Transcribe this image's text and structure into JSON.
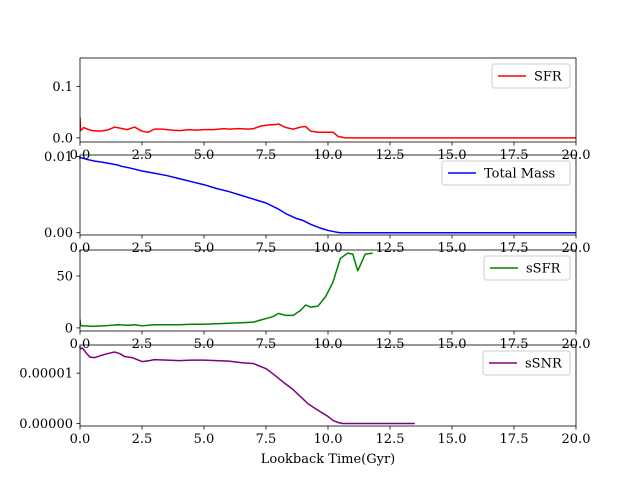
{
  "chart_data": [
    {
      "type": "line",
      "xlim": [
        0,
        20
      ],
      "ylim": [
        -0.008,
        0.155
      ],
      "xticks": [
        "0.0",
        "2.5",
        "5.0",
        "7.5",
        "10.0",
        "12.5",
        "15.0",
        "17.5",
        "20.0"
      ],
      "yticks": [
        {
          "value": 0.0,
          "label": "0.0"
        },
        {
          "value": 0.1,
          "label": "0.1"
        }
      ],
      "legend_position": "upper right",
      "series": [
        {
          "name": "SFR",
          "color": "#ff0000",
          "x": [
            0,
            0.02,
            0.15,
            0.3,
            0.5,
            0.8,
            1.1,
            1.4,
            1.7,
            1.9,
            2.2,
            2.5,
            2.75,
            3.0,
            3.3,
            3.7,
            4.0,
            4.4,
            4.7,
            5.0,
            5.4,
            5.8,
            6.0,
            6.4,
            6.8,
            7.0,
            7.3,
            7.6,
            7.9,
            8.0,
            8.3,
            8.6,
            8.9,
            9.1,
            9.3,
            9.6,
            9.9,
            10.2,
            10.4,
            10.7,
            11,
            12,
            14,
            16,
            18,
            20
          ],
          "y": [
            0.04,
            0.014,
            0.02,
            0.017,
            0.014,
            0.013,
            0.015,
            0.021,
            0.018,
            0.016,
            0.021,
            0.013,
            0.011,
            0.017,
            0.017,
            0.015,
            0.014,
            0.016,
            0.015,
            0.016,
            0.016,
            0.018,
            0.017,
            0.018,
            0.017,
            0.018,
            0.023,
            0.025,
            0.026,
            0.027,
            0.02,
            0.017,
            0.021,
            0.022,
            0.013,
            0.011,
            0.011,
            0.011,
            0.003,
            0.0,
            0.0,
            0.0,
            0.0,
            0.0,
            0.0,
            0.0
          ]
        }
      ]
    },
    {
      "type": "line",
      "xlim": [
        0,
        20
      ],
      "ylim": [
        -0.0003,
        0.0102
      ],
      "xticks": [
        "0.0",
        "2.5",
        "5.0",
        "7.5",
        "10.0",
        "12.5",
        "15.0",
        "17.5",
        "20.0"
      ],
      "yticks": [
        {
          "value": 0.0,
          "label": "0.00"
        },
        {
          "value": 0.01,
          "label": "0.01"
        }
      ],
      "legend_position": "upper right",
      "series": [
        {
          "name": "Total Mass",
          "color": "#0000ff",
          "x": [
            0,
            0.3,
            0.6,
            1.0,
            1.5,
            1.7,
            2.0,
            2.5,
            3.0,
            3.5,
            4.0,
            4.5,
            5.0,
            5.5,
            6.0,
            6.5,
            7.0,
            7.5,
            8.0,
            8.3,
            8.7,
            9.0,
            9.3,
            9.7,
            10.0,
            10.3,
            10.5,
            10.7,
            11,
            12,
            14,
            16,
            18,
            20
          ],
          "y": [
            0.0099,
            0.0096,
            0.0094,
            0.0092,
            0.0089,
            0.0087,
            0.0085,
            0.0081,
            0.0078,
            0.0075,
            0.0071,
            0.0067,
            0.0063,
            0.0058,
            0.0054,
            0.0049,
            0.0044,
            0.0039,
            0.0031,
            0.0025,
            0.0019,
            0.0016,
            0.0011,
            0.0006,
            0.0003,
            0.0001,
            0.0,
            0.0,
            0.0,
            0.0,
            0.0,
            0.0,
            0.0,
            0.0
          ]
        }
      ]
    },
    {
      "type": "line",
      "xlim": [
        0,
        20
      ],
      "ylim": [
        -3,
        75
      ],
      "xticks": [
        "0.0",
        "2.5",
        "5.0",
        "7.5",
        "10.0",
        "12.5",
        "15.0",
        "17.5",
        "20.0"
      ],
      "yticks": [
        {
          "value": 0,
          "label": "0"
        },
        {
          "value": 50,
          "label": "50"
        }
      ],
      "legend_position": "upper right",
      "series": [
        {
          "name": "sSFR",
          "color": "#008000",
          "x": [
            0,
            0.02,
            0.1,
            0.5,
            1.0,
            1.5,
            2.0,
            2.2,
            2.5,
            3.0,
            3.5,
            4.0,
            4.5,
            5.0,
            5.5,
            6.0,
            6.5,
            7.0,
            7.2,
            7.5,
            7.8,
            8.0,
            8.3,
            8.6,
            8.9,
            9.1,
            9.3,
            9.6,
            9.9,
            10.2,
            10.5,
            10.8,
            11.0,
            11.2,
            11.5,
            11.8
          ],
          "y": [
            8,
            2,
            2,
            1.5,
            2,
            3,
            2.5,
            3,
            2,
            3,
            3,
            3,
            3.5,
            3.5,
            4,
            4.5,
            5,
            5.5,
            7,
            9,
            11,
            14,
            12,
            12,
            17,
            22,
            20,
            21,
            30,
            44,
            67,
            72,
            71,
            55,
            71,
            72
          ]
        }
      ]
    },
    {
      "type": "line",
      "xlim": [
        0,
        20
      ],
      "ylim": [
        -5e-07,
        1.56e-05
      ],
      "xticks": [
        "0.0",
        "2.5",
        "5.0",
        "7.5",
        "10.0",
        "12.5",
        "15.0",
        "17.5",
        "20.0"
      ],
      "yticks": [
        {
          "value": 0.0,
          "label": "0.00000"
        },
        {
          "value": 1e-05,
          "label": "0.00001"
        }
      ],
      "xlabel": "Lookback Time(Gyr)",
      "legend_position": "upper right",
      "series": [
        {
          "name": "sSNR",
          "color": "#800080",
          "x": [
            0,
            0.1,
            0.25,
            0.4,
            0.6,
            0.9,
            1.2,
            1.4,
            1.6,
            1.8,
            2.1,
            2.3,
            2.5,
            2.8,
            3.0,
            3.5,
            4.0,
            4.5,
            5.0,
            5.5,
            6.0,
            6.5,
            7.0,
            7.2,
            7.5,
            7.8,
            8.2,
            8.6,
            8.9,
            9.2,
            9.6,
            10.0,
            10.2,
            10.4,
            10.6,
            11,
            12,
            13,
            13.5
          ],
          "y": [
            1.48e-05,
            1.5e-05,
            1.4e-05,
            1.32e-05,
            1.31e-05,
            1.36e-05,
            1.4e-05,
            1.42e-05,
            1.39e-05,
            1.33e-05,
            1.31e-05,
            1.27e-05,
            1.23e-05,
            1.25e-05,
            1.27e-05,
            1.26e-05,
            1.25e-05,
            1.26e-05,
            1.26e-05,
            1.25e-05,
            1.24e-05,
            1.21e-05,
            1.19e-05,
            1.15e-05,
            1.09e-05,
            9.8e-06,
            8.2e-06,
            6.7e-06,
            5.3e-06,
            3.9e-06,
            2.6e-06,
            1.4e-06,
            6e-07,
            2e-07,
            0.0,
            0.0,
            0.0,
            0.0,
            0.0
          ]
        }
      ]
    }
  ]
}
